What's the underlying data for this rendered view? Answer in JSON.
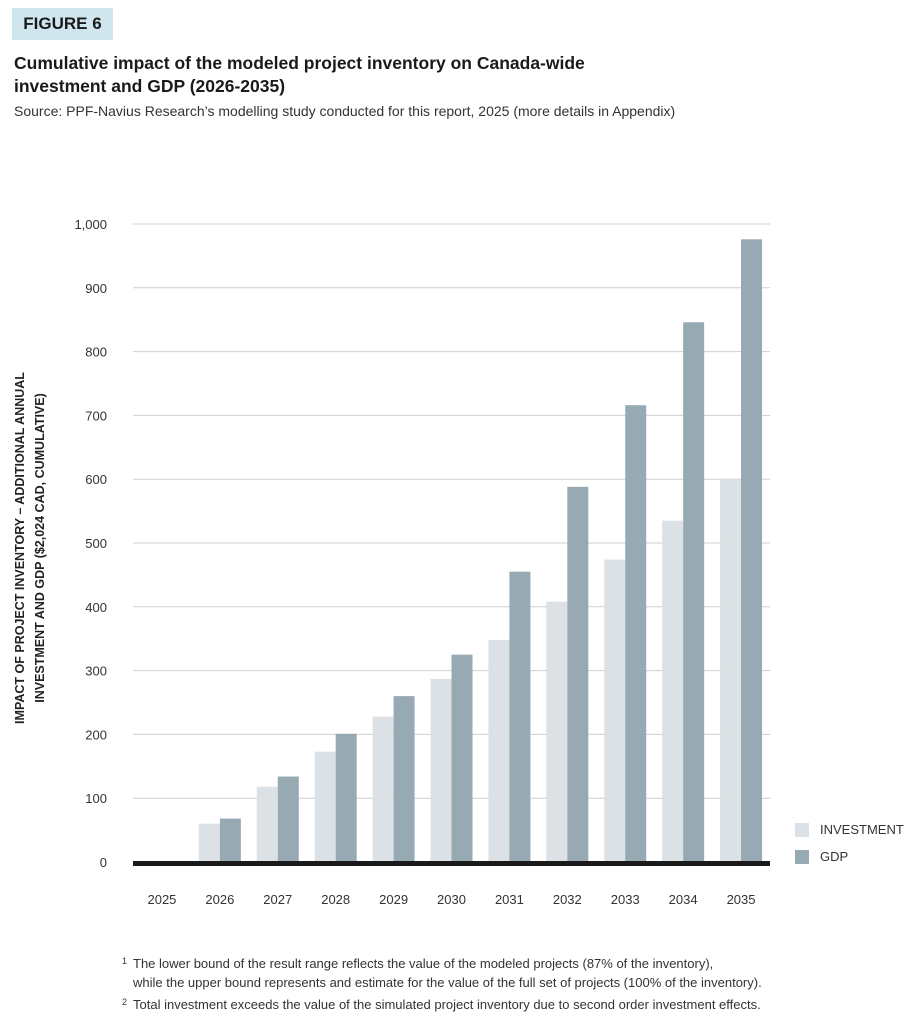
{
  "figure_label": "FIGURE 6",
  "title": "Cumulative impact of the modeled project inventory on Canada-wide investment and GDP (2026-2035)",
  "source": "Source: PPF-Navius Research’s modelling study conducted for this report, 2025 (more details in Appendix)",
  "footnotes": [
    {
      "marker": "1",
      "line1": "The lower bound of the result range reflects the value of the modeled projects (87% of the inventory),",
      "line2": "while the upper bound represents and estimate for the value of the full set of projects (100% of the inventory)."
    },
    {
      "marker": "2",
      "line1": "Total investment exceeds the value of the simulated project inventory due to second order investment effects."
    }
  ],
  "colors": {
    "investment": "#dbe1e4",
    "gdp": "#97a9b2",
    "grid": "#cfcfcf",
    "baseline": "#1a1a1a"
  },
  "chart_data": {
    "type": "bar",
    "ylabel_line1": "IMPACT OF PROJECT INVENTORY – ADDITIONAL ANNUAL",
    "ylabel_line2": "INVESTMENT AND GDP ($2,024 CAD, CUMULATIVE)",
    "ylim": [
      0,
      1000
    ],
    "yticks": [
      0,
      100,
      200,
      300,
      400,
      500,
      600,
      700,
      800,
      900,
      1000
    ],
    "ytick_labels": [
      "0",
      "100",
      "200",
      "300",
      "400",
      "500",
      "600",
      "700",
      "800",
      "900",
      "1,000"
    ],
    "grid": true,
    "legend_position": "bottom-right",
    "categories": [
      "2025",
      "2026",
      "2027",
      "2028",
      "2029",
      "2030",
      "2031",
      "2032",
      "2033",
      "2034",
      "2035"
    ],
    "series": [
      {
        "name": "INVESTMENT",
        "values": [
          0,
          60,
          118,
          173,
          228,
          287,
          348,
          408,
          474,
          535,
          600
        ]
      },
      {
        "name": "GDP",
        "values": [
          0,
          68,
          134,
          201,
          260,
          325,
          455,
          588,
          716,
          846,
          976
        ]
      }
    ]
  }
}
